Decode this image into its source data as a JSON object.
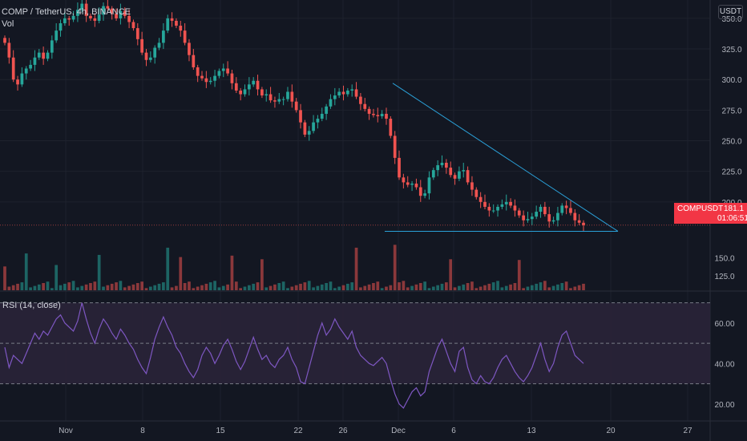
{
  "header": {
    "symbol_line": "COMP / TetherUS, 4h, BINANCE",
    "volume_label": "Vol"
  },
  "currency_badge": "USDT",
  "price_tag": {
    "symbol": "COMPUSDT",
    "price": "181.1",
    "countdown": "01:06:51"
  },
  "colors": {
    "background": "#131722",
    "up": "#26a69a",
    "down": "#ef5350",
    "trendline": "#2a9fd6",
    "rsi_line": "#7e57c2",
    "rsi_band": "#2a2438",
    "price_tag": "#f23645"
  },
  "chart_data": [
    {
      "type": "candlestick",
      "title": "COMP / TetherUS, 4h, BINANCE",
      "price_axis_ticks": [
        "350.0",
        "325.0",
        "300.0",
        "275.0",
        "250.0",
        "225.0",
        "200.0"
      ],
      "ylim": [
        175,
        365
      ],
      "x_ticks": [
        "Nov",
        "8",
        "15",
        "22",
        "26",
        "Dec",
        "6",
        "13",
        "20",
        "27"
      ],
      "last_price": 181.1,
      "series_close": [
        330,
        318,
        300,
        296,
        305,
        309,
        312,
        318,
        322,
        317,
        322,
        332,
        340,
        346,
        350,
        349,
        352,
        357,
        362,
        352,
        350,
        348,
        353,
        360,
        358,
        354,
        350,
        356,
        352,
        347,
        342,
        333,
        322,
        316,
        318,
        326,
        330,
        340,
        350,
        348,
        344,
        340,
        330,
        320,
        310,
        303,
        301,
        298,
        299,
        303,
        307,
        309,
        305,
        297,
        291,
        288,
        292,
        296,
        299,
        292,
        287,
        288,
        283,
        282,
        284,
        284,
        290,
        282,
        275,
        265,
        255,
        258,
        265,
        268,
        272,
        278,
        284,
        287,
        290,
        288,
        291,
        292,
        286,
        280,
        276,
        272,
        271,
        270,
        272,
        268,
        254,
        236,
        220,
        216,
        214,
        215,
        212,
        205,
        207,
        220,
        226,
        230,
        232,
        228,
        222,
        219,
        225,
        226,
        216,
        210,
        204,
        200,
        196,
        193,
        193,
        196,
        198,
        200,
        197,
        193,
        189,
        185,
        186,
        188,
        192,
        196,
        190,
        184,
        185,
        191,
        197,
        195,
        191,
        185,
        183,
        181
      ],
      "trendlines": [
        {
          "from": {
            "date": "Nov 30",
            "price": 297
          },
          "to": {
            "date": "Dec 20",
            "price": 176
          }
        },
        {
          "from": {
            "date": "Nov 30",
            "price": 176
          },
          "to": {
            "date": "Dec 20",
            "price": 176
          }
        }
      ]
    },
    {
      "type": "bar",
      "title": "Vol",
      "axis_ticks": [
        "150.0",
        "125.0"
      ],
      "ylim": [
        105,
        185
      ],
      "spike_indices": [
        0,
        5,
        12,
        22,
        38,
        41,
        53,
        60,
        82,
        91,
        104,
        120
      ]
    },
    {
      "type": "line",
      "title": "RSI (14, close)",
      "axis_ticks": [
        "60.00",
        "40.00",
        "20.00"
      ],
      "ylim": [
        12,
        75
      ],
      "bands": [
        70,
        50,
        30
      ],
      "values": [
        48,
        38,
        44,
        42,
        40,
        45,
        50,
        55,
        52,
        56,
        54,
        58,
        62,
        64,
        60,
        58,
        56,
        61,
        70,
        62,
        55,
        50,
        57,
        62,
        59,
        55,
        52,
        57,
        54,
        50,
        47,
        42,
        38,
        35,
        43,
        52,
        58,
        63,
        58,
        54,
        48,
        45,
        40,
        36,
        33,
        37,
        44,
        48,
        45,
        40,
        44,
        49,
        52,
        47,
        41,
        37,
        41,
        47,
        53,
        47,
        42,
        44,
        40,
        38,
        42,
        44,
        48,
        42,
        38,
        31,
        30,
        38,
        46,
        54,
        60,
        54,
        57,
        62,
        58,
        55,
        52,
        56,
        48,
        44,
        42,
        40,
        39,
        41,
        43,
        40,
        32,
        25,
        20,
        18,
        22,
        26,
        28,
        24,
        26,
        36,
        42,
        48,
        52,
        46,
        40,
        36,
        46,
        48,
        38,
        32,
        30,
        34,
        31,
        30,
        33,
        38,
        42,
        44,
        40,
        36,
        33,
        31,
        34,
        38,
        44,
        50,
        42,
        36,
        40,
        48,
        54,
        56,
        50,
        44,
        42,
        40
      ]
    }
  ]
}
